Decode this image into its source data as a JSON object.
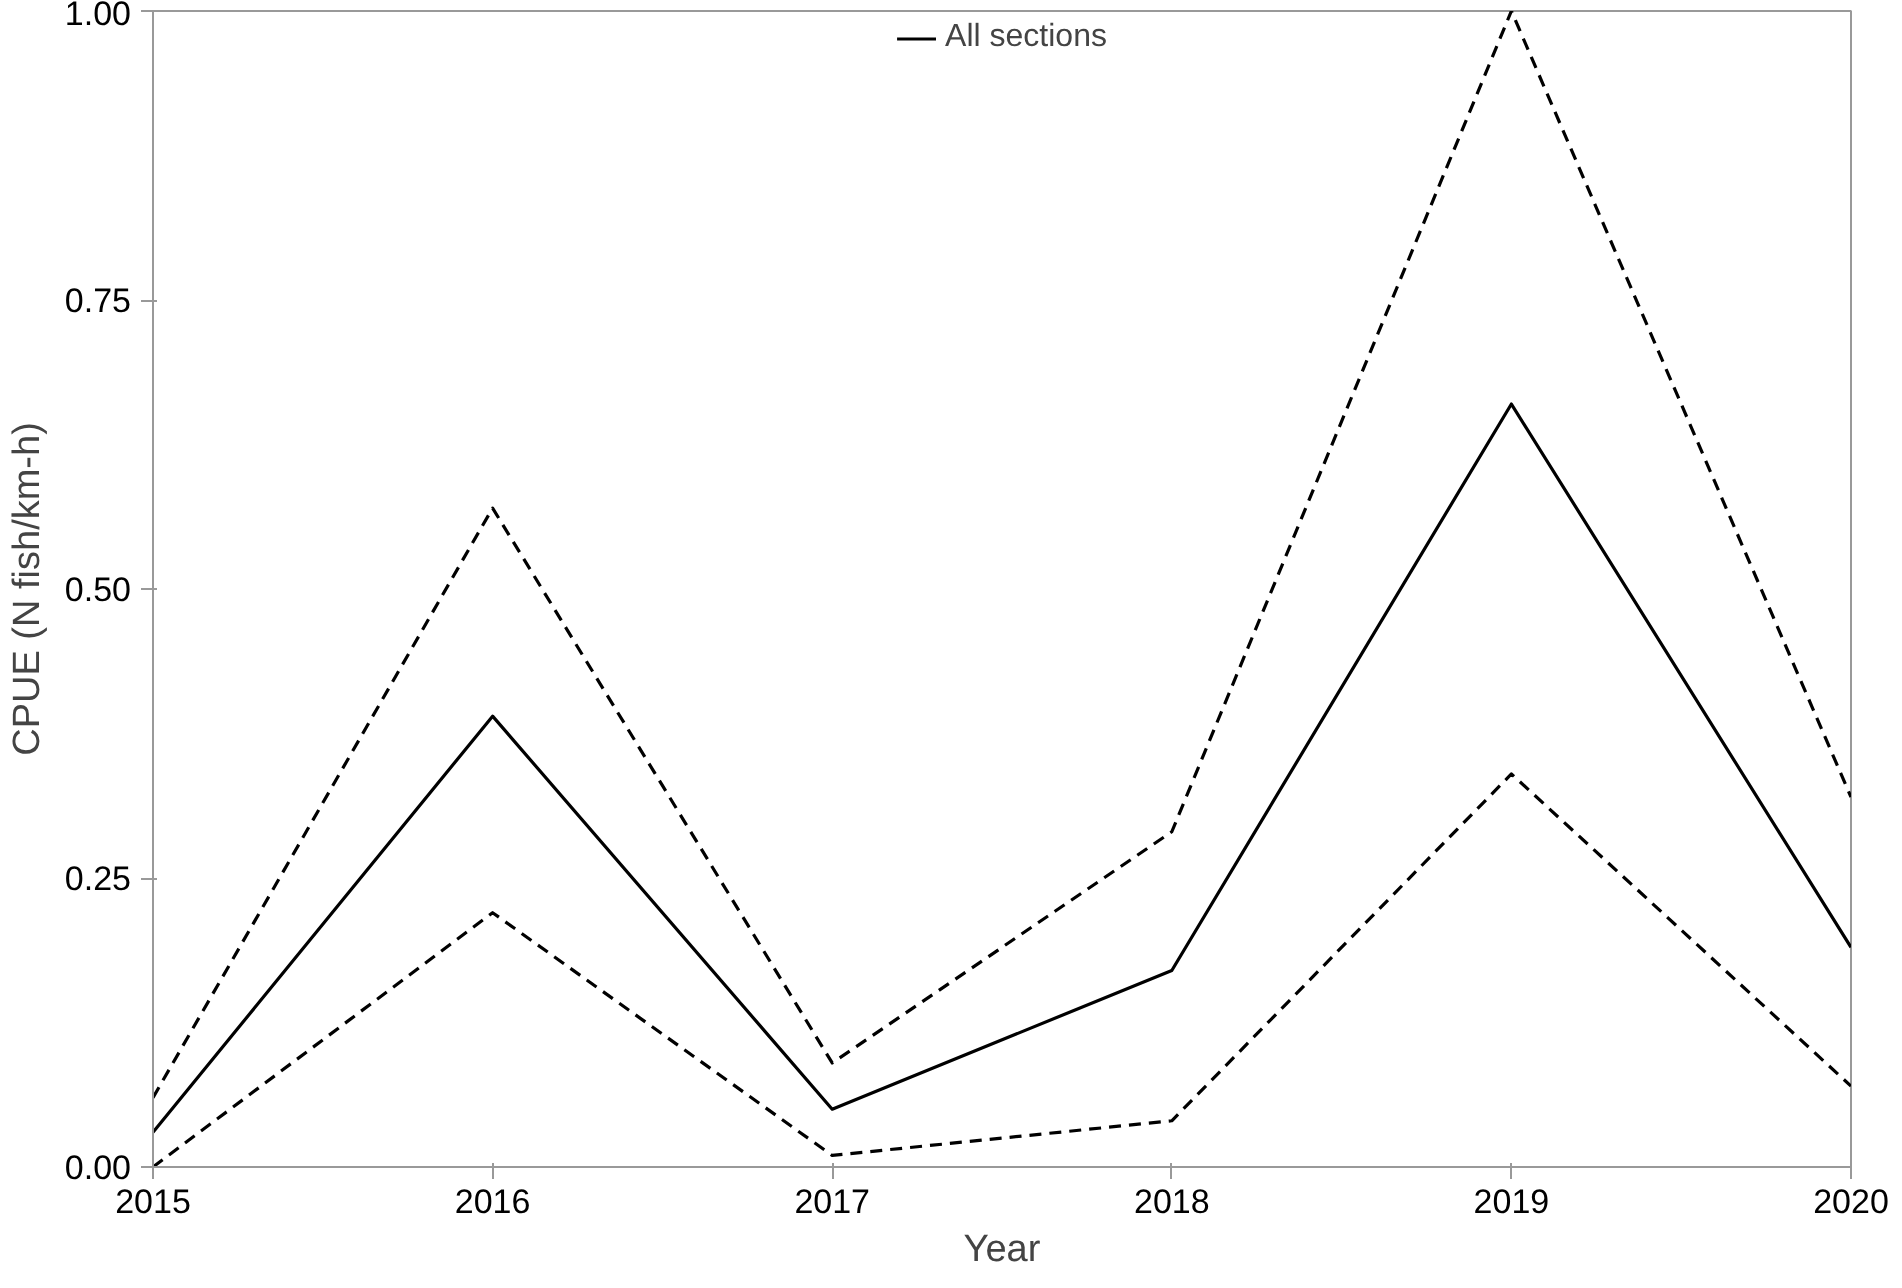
{
  "chart_data": {
    "type": "line",
    "xlabel": "Year",
    "ylabel": "CPUE (N fish/km-h)",
    "x": [
      2015,
      2016,
      2017,
      2018,
      2019,
      2020
    ],
    "series": [
      {
        "name": "All sections",
        "color": "#000000",
        "line_style": "solid",
        "values": [
          0.03,
          0.39,
          0.05,
          0.17,
          0.66,
          0.19
        ]
      },
      {
        "color": "#000000",
        "line_style": "dashed",
        "values": [
          0.06,
          0.57,
          0.09,
          0.29,
          1.0,
          0.32
        ]
      },
      {
        "color": "#000000",
        "line_style": "dashed",
        "values": [
          0.0,
          0.22,
          0.01,
          0.04,
          0.34,
          0.07
        ]
      }
    ],
    "xlim": [
      2015,
      2020
    ],
    "ylim": [
      0,
      1
    ],
    "xticks": [
      2015,
      2016,
      2017,
      2018,
      2019,
      2020
    ],
    "yticks": [
      {
        "value": 0,
        "label": "0.00"
      },
      {
        "value": 0.25,
        "label": "0.25"
      },
      {
        "value": 0.5,
        "label": "0.50"
      },
      {
        "value": 0.75,
        "label": "0.75"
      },
      {
        "value": 1,
        "label": "1.00"
      }
    ],
    "grid": false,
    "legend": "top",
    "marker": "none"
  }
}
